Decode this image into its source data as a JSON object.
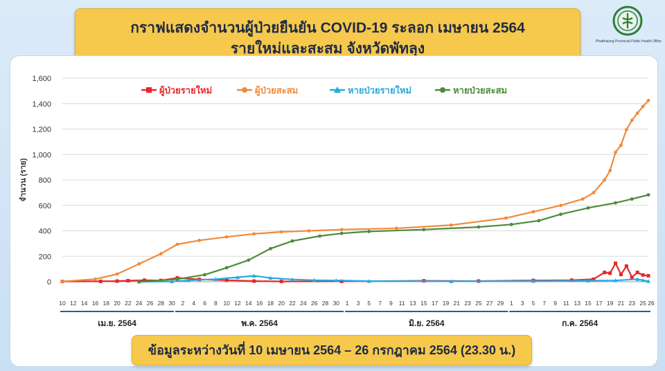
{
  "header": {
    "title_line1": "กราฟแสดงจำนวนผู้ป่วยยืนยัน COVID-19 ระลอก เมษายน 2564",
    "title_line2": "รายใหม่และสะสม จังหวัดพัทลุง",
    "logo_caption": "Phatthalung Provincial Public Health Office"
  },
  "footer": {
    "text": "ข้อมูลระหว่างวันที่ 10 เมษายน 2564 – 26 กรกฎาคม 2564 (23.30 น.)"
  },
  "colors": {
    "new_cases": "#e8262b",
    "cumulative_cases": "#f08a3c",
    "new_recovered": "#26a9e0",
    "cumulative_recovered": "#4e8a3a",
    "grid": "#d9d9d9",
    "month_band": "#1f5f9e"
  },
  "chart_data": {
    "type": "line",
    "title": "",
    "xlabel": "",
    "ylabel": "จำนวน (ราย)",
    "ylim": [
      0,
      1600
    ],
    "yticks": [
      "0",
      "200",
      "400",
      "600",
      "800",
      "1,000",
      "1,200",
      "1,400",
      "1,600"
    ],
    "grid": true,
    "legend_position": "top",
    "start_date": "2021-04-10",
    "end_date": "2021-07-26",
    "x_tick_labels": [
      "10",
      "12",
      "14",
      "16",
      "18",
      "20",
      "22",
      "24",
      "26",
      "28",
      "30",
      "2",
      "4",
      "6",
      "8",
      "10",
      "12",
      "14",
      "16",
      "18",
      "20",
      "22",
      "24",
      "26",
      "28",
      "30",
      "1",
      "3",
      "5",
      "7",
      "9",
      "11",
      "13",
      "15",
      "17",
      "19",
      "21",
      "23",
      "25",
      "27",
      "29",
      "1",
      "3",
      "5",
      "7",
      "9",
      "11",
      "13",
      "15",
      "17",
      "19",
      "21",
      "23",
      "25",
      "26"
    ],
    "months": [
      "เม.ย. 2564",
      "พ.ค. 2564",
      "มิ.ย. 2564",
      "ก.ค. 2564"
    ],
    "series": [
      {
        "name": "ผู้ป่วยรายใหม่",
        "key": "new_cases",
        "marker": "square",
        "points": [
          [
            "2021-04-10",
            2
          ],
          [
            "2021-04-17",
            3
          ],
          [
            "2021-04-20",
            5
          ],
          [
            "2021-04-22",
            8
          ],
          [
            "2021-04-25",
            12
          ],
          [
            "2021-04-28",
            10
          ],
          [
            "2021-05-01",
            30
          ],
          [
            "2021-05-05",
            18
          ],
          [
            "2021-05-10",
            12
          ],
          [
            "2021-05-15",
            5
          ],
          [
            "2021-05-20",
            2
          ],
          [
            "2021-05-31",
            3
          ],
          [
            "2021-06-15",
            7
          ],
          [
            "2021-06-25",
            5
          ],
          [
            "2021-07-05",
            10
          ],
          [
            "2021-07-12",
            12
          ],
          [
            "2021-07-16",
            20
          ],
          [
            "2021-07-18",
            73
          ],
          [
            "2021-07-19",
            67
          ],
          [
            "2021-07-20",
            145
          ],
          [
            "2021-07-21",
            57
          ],
          [
            "2021-07-22",
            123
          ],
          [
            "2021-07-23",
            35
          ],
          [
            "2021-07-24",
            73
          ],
          [
            "2021-07-25",
            53
          ],
          [
            "2021-07-26",
            47
          ]
        ]
      },
      {
        "name": "ผู้ป่วยสะสม",
        "key": "cumulative_cases",
        "marker": "circle",
        "points": [
          [
            "2021-04-10",
            2
          ],
          [
            "2021-04-16",
            20
          ],
          [
            "2021-04-20",
            60
          ],
          [
            "2021-04-24",
            140
          ],
          [
            "2021-04-28",
            220
          ],
          [
            "2021-05-01",
            294
          ],
          [
            "2021-05-05",
            325
          ],
          [
            "2021-05-10",
            352
          ],
          [
            "2021-05-15",
            376
          ],
          [
            "2021-05-20",
            392
          ],
          [
            "2021-05-25",
            400
          ],
          [
            "2021-05-31",
            410
          ],
          [
            "2021-06-10",
            420
          ],
          [
            "2021-06-20",
            445
          ],
          [
            "2021-06-30",
            500
          ],
          [
            "2021-07-05",
            550
          ],
          [
            "2021-07-10",
            600
          ],
          [
            "2021-07-14",
            650
          ],
          [
            "2021-07-16",
            700
          ],
          [
            "2021-07-18",
            800
          ],
          [
            "2021-07-19",
            873
          ],
          [
            "2021-07-20",
            1018
          ],
          [
            "2021-07-21",
            1073
          ],
          [
            "2021-07-22",
            1196
          ],
          [
            "2021-07-23",
            1269
          ],
          [
            "2021-07-24",
            1325
          ],
          [
            "2021-07-25",
            1378
          ],
          [
            "2021-07-26",
            1425
          ]
        ]
      },
      {
        "name": "หายป่วยรายใหม่",
        "key": "new_recovered",
        "marker": "triangle",
        "points": [
          [
            "2021-04-24",
            0
          ],
          [
            "2021-04-30",
            2
          ],
          [
            "2021-05-03",
            10
          ],
          [
            "2021-05-08",
            20
          ],
          [
            "2021-05-12",
            35
          ],
          [
            "2021-05-15",
            46
          ],
          [
            "2021-05-18",
            30
          ],
          [
            "2021-05-22",
            18
          ],
          [
            "2021-05-26",
            12
          ],
          [
            "2021-05-30",
            10
          ],
          [
            "2021-06-05",
            5
          ],
          [
            "2021-06-20",
            3
          ],
          [
            "2021-07-05",
            5
          ],
          [
            "2021-07-15",
            8
          ],
          [
            "2021-07-20",
            10
          ],
          [
            "2021-07-24",
            20
          ],
          [
            "2021-07-25",
            11
          ],
          [
            "2021-07-26",
            4
          ]
        ]
      },
      {
        "name": "หายป่วยสะสม",
        "key": "cumulative_recovered",
        "marker": "circle",
        "points": [
          [
            "2021-04-24",
            0
          ],
          [
            "2021-05-01",
            20
          ],
          [
            "2021-05-06",
            55
          ],
          [
            "2021-05-10",
            110
          ],
          [
            "2021-05-14",
            170
          ],
          [
            "2021-05-18",
            260
          ],
          [
            "2021-05-22",
            320
          ],
          [
            "2021-05-27",
            359
          ],
          [
            "2021-05-31",
            380
          ],
          [
            "2021-06-05",
            395
          ],
          [
            "2021-06-15",
            410
          ],
          [
            "2021-06-25",
            430
          ],
          [
            "2021-07-01",
            450
          ],
          [
            "2021-07-06",
            480
          ],
          [
            "2021-07-10",
            530
          ],
          [
            "2021-07-15",
            580
          ],
          [
            "2021-07-20",
            620
          ],
          [
            "2021-07-23",
            650
          ],
          [
            "2021-07-26",
            683
          ]
        ]
      }
    ]
  }
}
